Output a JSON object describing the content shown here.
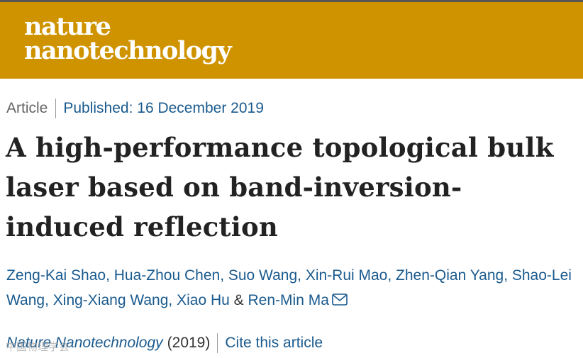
{
  "header": {
    "logo_line1": "nature",
    "logo_line2": "nanotechnology"
  },
  "article": {
    "type": "Article",
    "published": "Published: 16 December 2019",
    "title": "A high-performance topological bulk laser based on band-inversion-induced reflection"
  },
  "authors": [
    "Zeng-Kai Shao",
    "Hua-Zhou Chen",
    "Suo Wang",
    "Xin-Rui Mao",
    "Zhen-Qian Yang",
    "Shao-Lei Wang",
    "Xing-Xiang Wang",
    "Xiao Hu",
    "Ren-Min Ma"
  ],
  "author_sep": ", ",
  "author_amp": "&",
  "citation": {
    "journal": "Nature Nanotechnology",
    "year": "(2019)",
    "cite_label": "Cite this article"
  },
  "watermark": "中国物理学会",
  "colors": {
    "banner": "#cf9300",
    "link": "#1a5a8e",
    "text": "#222222"
  }
}
